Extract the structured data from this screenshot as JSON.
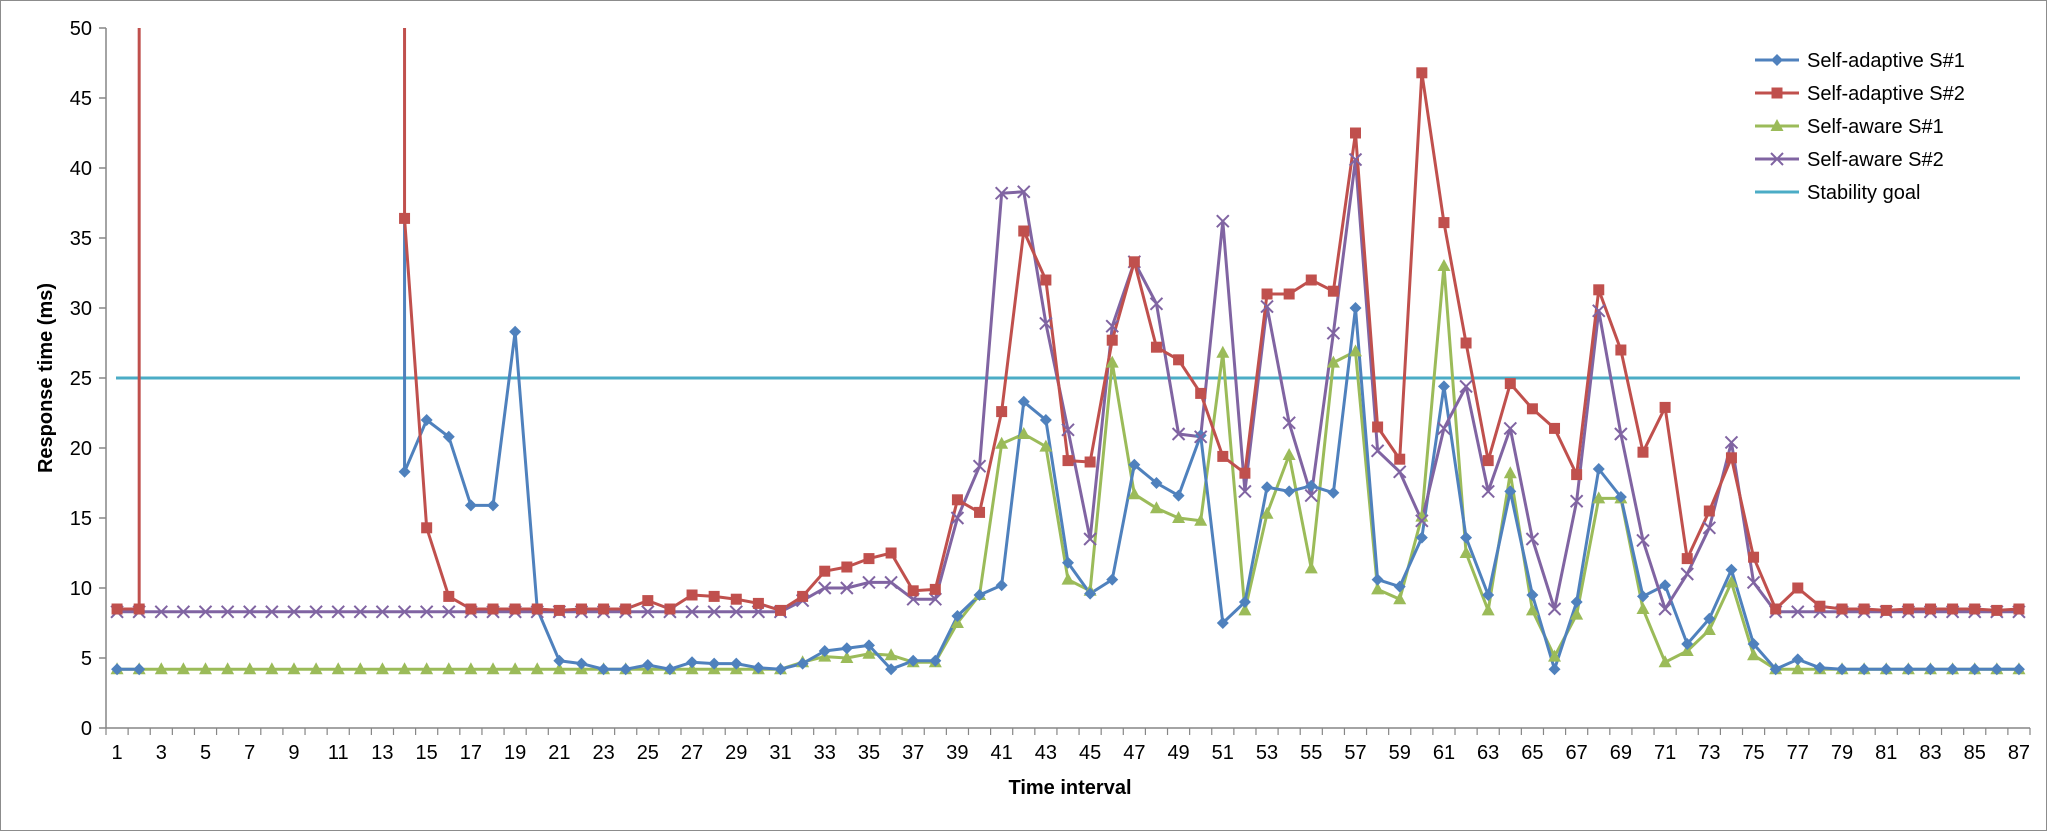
{
  "chart_data": {
    "type": "line",
    "xlabel": "Time interval",
    "ylabel": "Response time (ms)",
    "ylim": [
      0,
      50
    ],
    "yticks": [
      0,
      5,
      10,
      15,
      20,
      25,
      30,
      35,
      40,
      45,
      50
    ],
    "xlim": [
      1,
      87
    ],
    "xtick_labels": [
      1,
      3,
      5,
      7,
      9,
      11,
      13,
      15,
      17,
      19,
      21,
      23,
      25,
      27,
      29,
      31,
      33,
      35,
      37,
      39,
      41,
      43,
      45,
      47,
      49,
      51,
      53,
      55,
      57,
      59,
      61,
      63,
      65,
      67,
      69,
      71,
      73,
      75,
      77,
      79,
      81,
      83,
      85,
      87
    ],
    "grid": false,
    "legend_position": "top-right",
    "series": [
      {
        "name": "Self-adaptive S#1",
        "color": "#4F81BD",
        "marker": "diamond",
        "x": [
          1,
          2,
          14,
          15,
          16,
          17,
          18,
          19,
          20,
          21,
          22,
          23,
          24,
          25,
          26,
          27,
          28,
          29,
          30,
          31,
          32,
          33,
          34,
          35,
          36,
          37,
          38,
          39,
          40,
          41,
          42,
          43,
          44,
          45,
          46,
          47,
          48,
          49,
          50,
          51,
          52,
          53,
          54,
          55,
          56,
          57,
          58,
          59,
          60,
          61,
          62,
          63,
          64,
          65,
          66,
          67,
          68,
          69,
          70,
          71,
          72,
          73,
          74,
          75,
          76,
          77,
          78,
          79,
          80,
          81,
          82,
          83,
          84,
          85,
          86,
          87
        ],
        "values": [
          4.2,
          4.2,
          18.3,
          22,
          20.8,
          15.9,
          15.9,
          28.3,
          8.5,
          4.8,
          4.6,
          4.2,
          4.2,
          4.5,
          4.2,
          4.7,
          4.6,
          4.6,
          4.3,
          4.2,
          4.6,
          5.5,
          5.7,
          5.9,
          4.2,
          4.8,
          4.8,
          8,
          9.5,
          10.2,
          23.3,
          22,
          11.8,
          9.6,
          10.6,
          18.8,
          17.5,
          16.6,
          20.9,
          7.5,
          9,
          17.2,
          16.9,
          17.3,
          16.8,
          30,
          10.6,
          10.1,
          13.6,
          24.4,
          13.6,
          9.5,
          16.9,
          9.5,
          4.2,
          9,
          18.5,
          16.5,
          9.4,
          10.2,
          6,
          7.8,
          11.3,
          6,
          4.2,
          4.9,
          4.3,
          4.2,
          4.2,
          4.2,
          4.2,
          4.2,
          4.2,
          4.2,
          4.2,
          4.2
        ]
      },
      {
        "name": "Self-adaptive S#2",
        "color": "#C0504D",
        "marker": "square",
        "x": [
          1,
          2,
          14,
          15,
          16,
          17,
          18,
          19,
          20,
          21,
          22,
          23,
          24,
          25,
          26,
          27,
          28,
          29,
          30,
          31,
          32,
          33,
          34,
          35,
          36,
          37,
          38,
          39,
          40,
          41,
          42,
          43,
          44,
          45,
          46,
          47,
          48,
          49,
          50,
          51,
          52,
          53,
          54,
          55,
          56,
          57,
          58,
          59,
          60,
          61,
          62,
          63,
          64,
          65,
          66,
          67,
          68,
          69,
          70,
          71,
          72,
          73,
          74,
          75,
          76,
          77,
          78,
          79,
          80,
          81,
          82,
          83,
          84,
          85,
          86,
          87
        ],
        "values": [
          8.5,
          8.5,
          36.4,
          14.3,
          9.4,
          8.5,
          8.5,
          8.5,
          8.5,
          8.4,
          8.5,
          8.5,
          8.5,
          9.1,
          8.5,
          9.5,
          9.4,
          9.2,
          8.9,
          8.4,
          9.4,
          11.2,
          11.5,
          12.1,
          12.5,
          9.8,
          9.9,
          16.3,
          15.4,
          22.6,
          35.5,
          32,
          19.1,
          19,
          27.7,
          33.3,
          27.2,
          26.3,
          23.9,
          19.4,
          18.2,
          31,
          31,
          32,
          31.2,
          42.5,
          21.5,
          19.2,
          46.8,
          36.1,
          27.5,
          19.1,
          24.6,
          22.8,
          21.4,
          18.1,
          31.3,
          27,
          19.7,
          22.9,
          12.1,
          15.5,
          19.3,
          12.2,
          8.5,
          10,
          8.7,
          8.5,
          8.5,
          8.4,
          8.5,
          8.5,
          8.5,
          8.5,
          8.4,
          8.5
        ]
      },
      {
        "name": "Self-aware S#1",
        "color": "#9BBB59",
        "marker": "triangle",
        "x": [
          1,
          2,
          3,
          4,
          5,
          6,
          7,
          8,
          9,
          10,
          11,
          12,
          13,
          14,
          15,
          16,
          17,
          18,
          19,
          20,
          21,
          22,
          23,
          24,
          25,
          26,
          27,
          28,
          29,
          30,
          31,
          32,
          33,
          34,
          35,
          36,
          37,
          38,
          39,
          40,
          41,
          42,
          43,
          44,
          45,
          46,
          47,
          48,
          49,
          50,
          51,
          52,
          53,
          54,
          55,
          56,
          57,
          58,
          59,
          60,
          61,
          62,
          63,
          64,
          65,
          66,
          67,
          68,
          69,
          70,
          71,
          72,
          73,
          74,
          75,
          76,
          77,
          78,
          79,
          80,
          81,
          82,
          83,
          84,
          85,
          86,
          87
        ],
        "values": [
          4.2,
          4.2,
          4.2,
          4.2,
          4.2,
          4.2,
          4.2,
          4.2,
          4.2,
          4.2,
          4.2,
          4.2,
          4.2,
          4.2,
          4.2,
          4.2,
          4.2,
          4.2,
          4.2,
          4.2,
          4.2,
          4.2,
          4.2,
          4.2,
          4.2,
          4.2,
          4.2,
          4.2,
          4.2,
          4.2,
          4.2,
          4.7,
          5.1,
          5,
          5.3,
          5.2,
          4.7,
          4.7,
          7.5,
          9.5,
          20.3,
          21,
          20.1,
          10.6,
          9.8,
          26.1,
          16.7,
          15.7,
          15,
          14.8,
          26.8,
          8.4,
          15.3,
          19.5,
          11.4,
          26.1,
          26.9,
          9.9,
          9.2,
          15.1,
          33,
          12.5,
          8.4,
          18.2,
          8.4,
          5.1,
          8.1,
          16.4,
          16.4,
          8.5,
          4.7,
          5.5,
          7,
          10.4,
          5.2,
          4.2,
          4.2,
          4.2,
          4.2,
          4.2,
          4.2,
          4.2,
          4.2,
          4.2,
          4.2,
          4.2,
          4.2
        ]
      },
      {
        "name": "Self-aware S#2",
        "color": "#8064A2",
        "marker": "x",
        "x": [
          1,
          2,
          3,
          4,
          5,
          6,
          7,
          8,
          9,
          10,
          11,
          12,
          13,
          14,
          15,
          16,
          17,
          18,
          19,
          20,
          21,
          22,
          23,
          24,
          25,
          26,
          27,
          28,
          29,
          30,
          31,
          32,
          33,
          34,
          35,
          36,
          37,
          38,
          39,
          40,
          41,
          42,
          43,
          44,
          45,
          46,
          47,
          48,
          49,
          50,
          51,
          52,
          53,
          54,
          55,
          56,
          57,
          58,
          59,
          60,
          61,
          62,
          63,
          64,
          65,
          66,
          67,
          68,
          69,
          70,
          71,
          72,
          73,
          74,
          75,
          76,
          77,
          78,
          79,
          80,
          81,
          82,
          83,
          84,
          85,
          86,
          87
        ],
        "values": [
          8.3,
          8.3,
          8.3,
          8.3,
          8.3,
          8.3,
          8.3,
          8.3,
          8.3,
          8.3,
          8.3,
          8.3,
          8.3,
          8.3,
          8.3,
          8.3,
          8.3,
          8.3,
          8.3,
          8.3,
          8.3,
          8.3,
          8.3,
          8.3,
          8.3,
          8.3,
          8.3,
          8.3,
          8.3,
          8.3,
          8.3,
          9.1,
          10,
          10,
          10.4,
          10.4,
          9.2,
          9.2,
          15,
          18.7,
          38.2,
          38.3,
          28.9,
          21.3,
          13.5,
          28.7,
          33.3,
          30.3,
          21,
          20.8,
          36.2,
          16.9,
          30.1,
          21.8,
          16.6,
          28.2,
          40.6,
          19.8,
          18.3,
          14.8,
          21.4,
          24.4,
          16.9,
          21.4,
          13.5,
          8.5,
          16.2,
          29.8,
          21,
          13.4,
          8.5,
          11,
          14.3,
          20.4,
          10.4,
          8.3,
          8.3,
          8.3,
          8.3,
          8.3,
          8.3,
          8.3,
          8.3,
          8.3,
          8.3,
          8.3,
          8.3
        ]
      },
      {
        "name": "Stability goal",
        "color": "#4BACC6",
        "marker": "none",
        "x": [
          1,
          87
        ],
        "values": [
          25,
          25
        ]
      }
    ],
    "spikes": [
      {
        "series": "Self-adaptive S#2",
        "x": 2,
        "y_from": 8.5,
        "y_to": 50,
        "clipped": true
      },
      {
        "series": "Self-adaptive S#2",
        "x": 14,
        "y_from": 36.4,
        "y_to": 50,
        "clipped": true
      },
      {
        "series": "Self-adaptive S#1",
        "x": 14,
        "y_from": 18.3,
        "y_to": 36.4
      }
    ]
  }
}
